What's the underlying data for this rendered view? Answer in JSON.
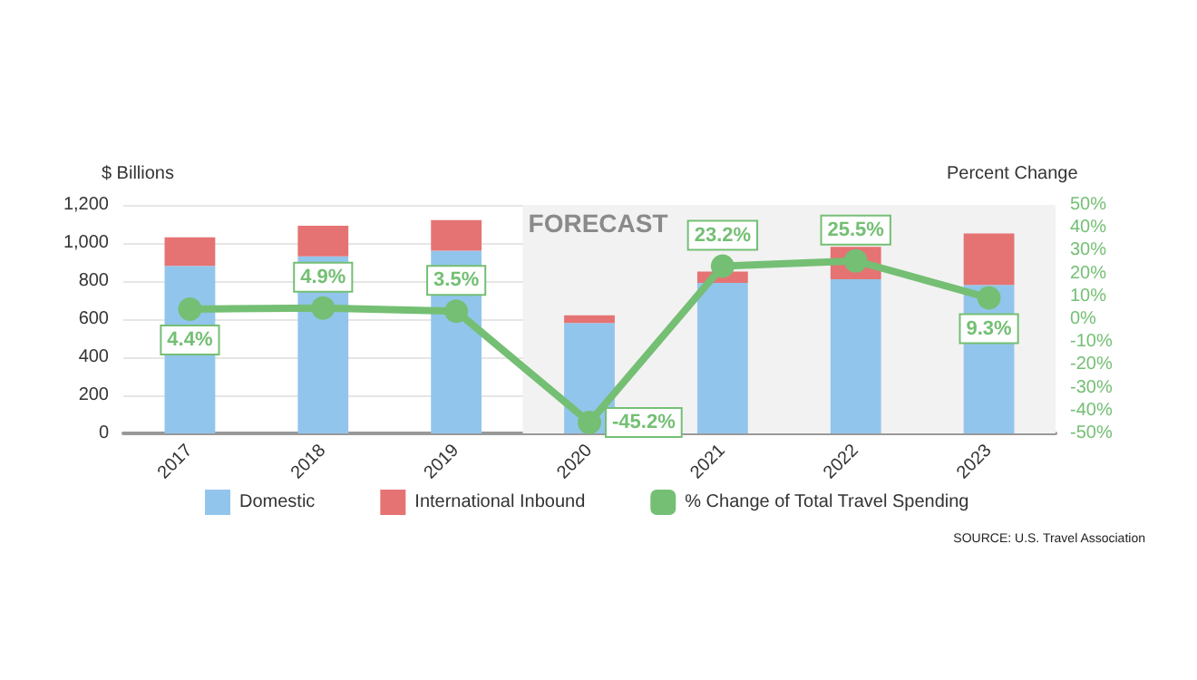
{
  "chart_data": {
    "type": "bar",
    "stacked": true,
    "categories": [
      "2017",
      "2018",
      "2019",
      "2020",
      "2021",
      "2022",
      "2023"
    ],
    "series": [
      {
        "name": "Domestic",
        "color": "#92c5ec",
        "values": [
          880,
          930,
          960,
          580,
          790,
          810,
          780
        ]
      },
      {
        "name": "International Inbound",
        "color": "#e57373",
        "values": [
          150,
          160,
          160,
          40,
          60,
          170,
          270
        ]
      },
      {
        "name": "% Change of Total Travel Spending",
        "type": "line",
        "axis": "y2",
        "color": "#74bf74",
        "marker": "circle",
        "values": [
          4.4,
          4.9,
          3.5,
          -45.2,
          23.2,
          25.5,
          9.3
        ],
        "value_labels": [
          "4.4%",
          "4.9%",
          "3.5%",
          "-45.2%",
          "23.2%",
          "25.5%",
          "9.3%"
        ]
      }
    ],
    "ylabel": "$ Billions",
    "y2label": "Percent Change",
    "ylim": [
      0,
      1200
    ],
    "yticks": [
      0,
      200,
      400,
      600,
      800,
      {
        "value": 1000,
        "label": "1,000"
      },
      {
        "value": 1200,
        "label": "1,200"
      }
    ],
    "y2lim": [
      -50,
      50
    ],
    "y2ticks": [
      {
        "value": -50,
        "label": "-50%"
      },
      {
        "value": -40,
        "label": "-40%"
      },
      {
        "value": -30,
        "label": "-30%"
      },
      {
        "value": -20,
        "label": "-20%"
      },
      {
        "value": -10,
        "label": "-10%"
      },
      {
        "value": 0,
        "label": "0%"
      },
      {
        "value": 10,
        "label": "10%"
      },
      {
        "value": 20,
        "label": "20%"
      },
      {
        "value": 30,
        "label": "30%"
      },
      {
        "value": 40,
        "label": "40%"
      },
      {
        "value": 50,
        "label": "50%"
      }
    ],
    "bands": [
      {
        "axis": "x",
        "from": "2020",
        "to": "2023",
        "label": "FORECAST",
        "color": "#f2f2f2"
      }
    ],
    "grid": "y",
    "legend": "bottom",
    "annotations": [
      "SOURCE: U.S. Travel Association"
    ]
  }
}
